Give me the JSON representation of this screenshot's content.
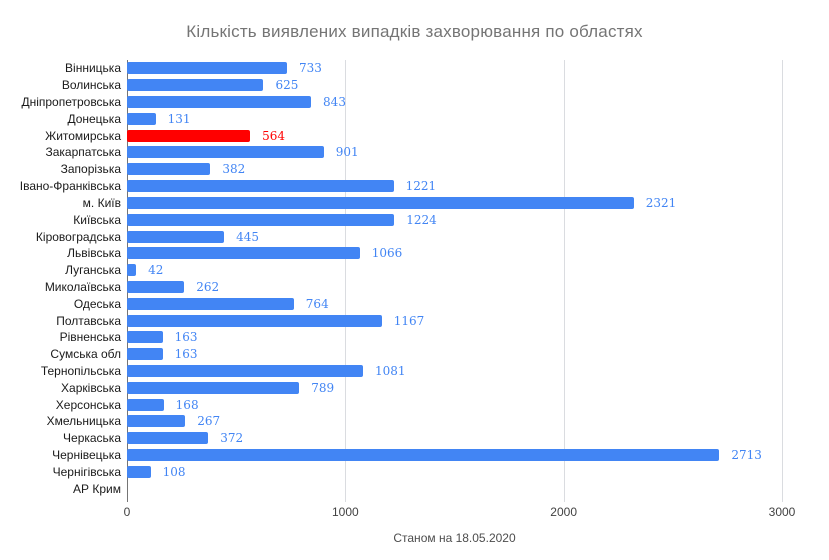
{
  "chart_data": {
    "type": "bar",
    "orientation": "horizontal",
    "title": "Кількість виявлених випадків захворювання по областях",
    "footer": "Станом на 18.05.2020",
    "xlabel": "",
    "ylabel": "",
    "xlim": [
      0,
      3000
    ],
    "x_ticks": [
      0,
      1000,
      2000,
      3000
    ],
    "grid": true,
    "categories": [
      "Вінницька",
      "Волинська",
      "Дніпропетровська",
      "Донецька",
      "Житомирська",
      "Закарпатська",
      "Запорізька",
      "Івано-Франківська",
      "м. Київ",
      "Київська",
      "Кіровоградська",
      "Львівська",
      "Луганська",
      "Миколаївська",
      "Одеська",
      "Полтавська",
      "Рівненська",
      "Сумська обл",
      "Тернопільська",
      "Харківська",
      "Херсонська",
      "Хмельницька",
      "Черкаська",
      "Чернівецька",
      "Чернігівська",
      "АР Крим"
    ],
    "values": [
      733,
      625,
      843,
      131,
      564,
      901,
      382,
      1221,
      2321,
      1224,
      445,
      1066,
      42,
      262,
      764,
      1167,
      163,
      163,
      1081,
      789,
      168,
      267,
      372,
      2713,
      108,
      0
    ],
    "highlight": {
      "category": "Житомирська",
      "index": 4,
      "color": "#ff0000"
    },
    "colors": {
      "bar": "#4285f4",
      "value_label": "#4285f4",
      "title": "#757575",
      "category_label": "#1a1a1a",
      "gridline": "#dadce0",
      "axis_baseline": "#757575"
    }
  }
}
